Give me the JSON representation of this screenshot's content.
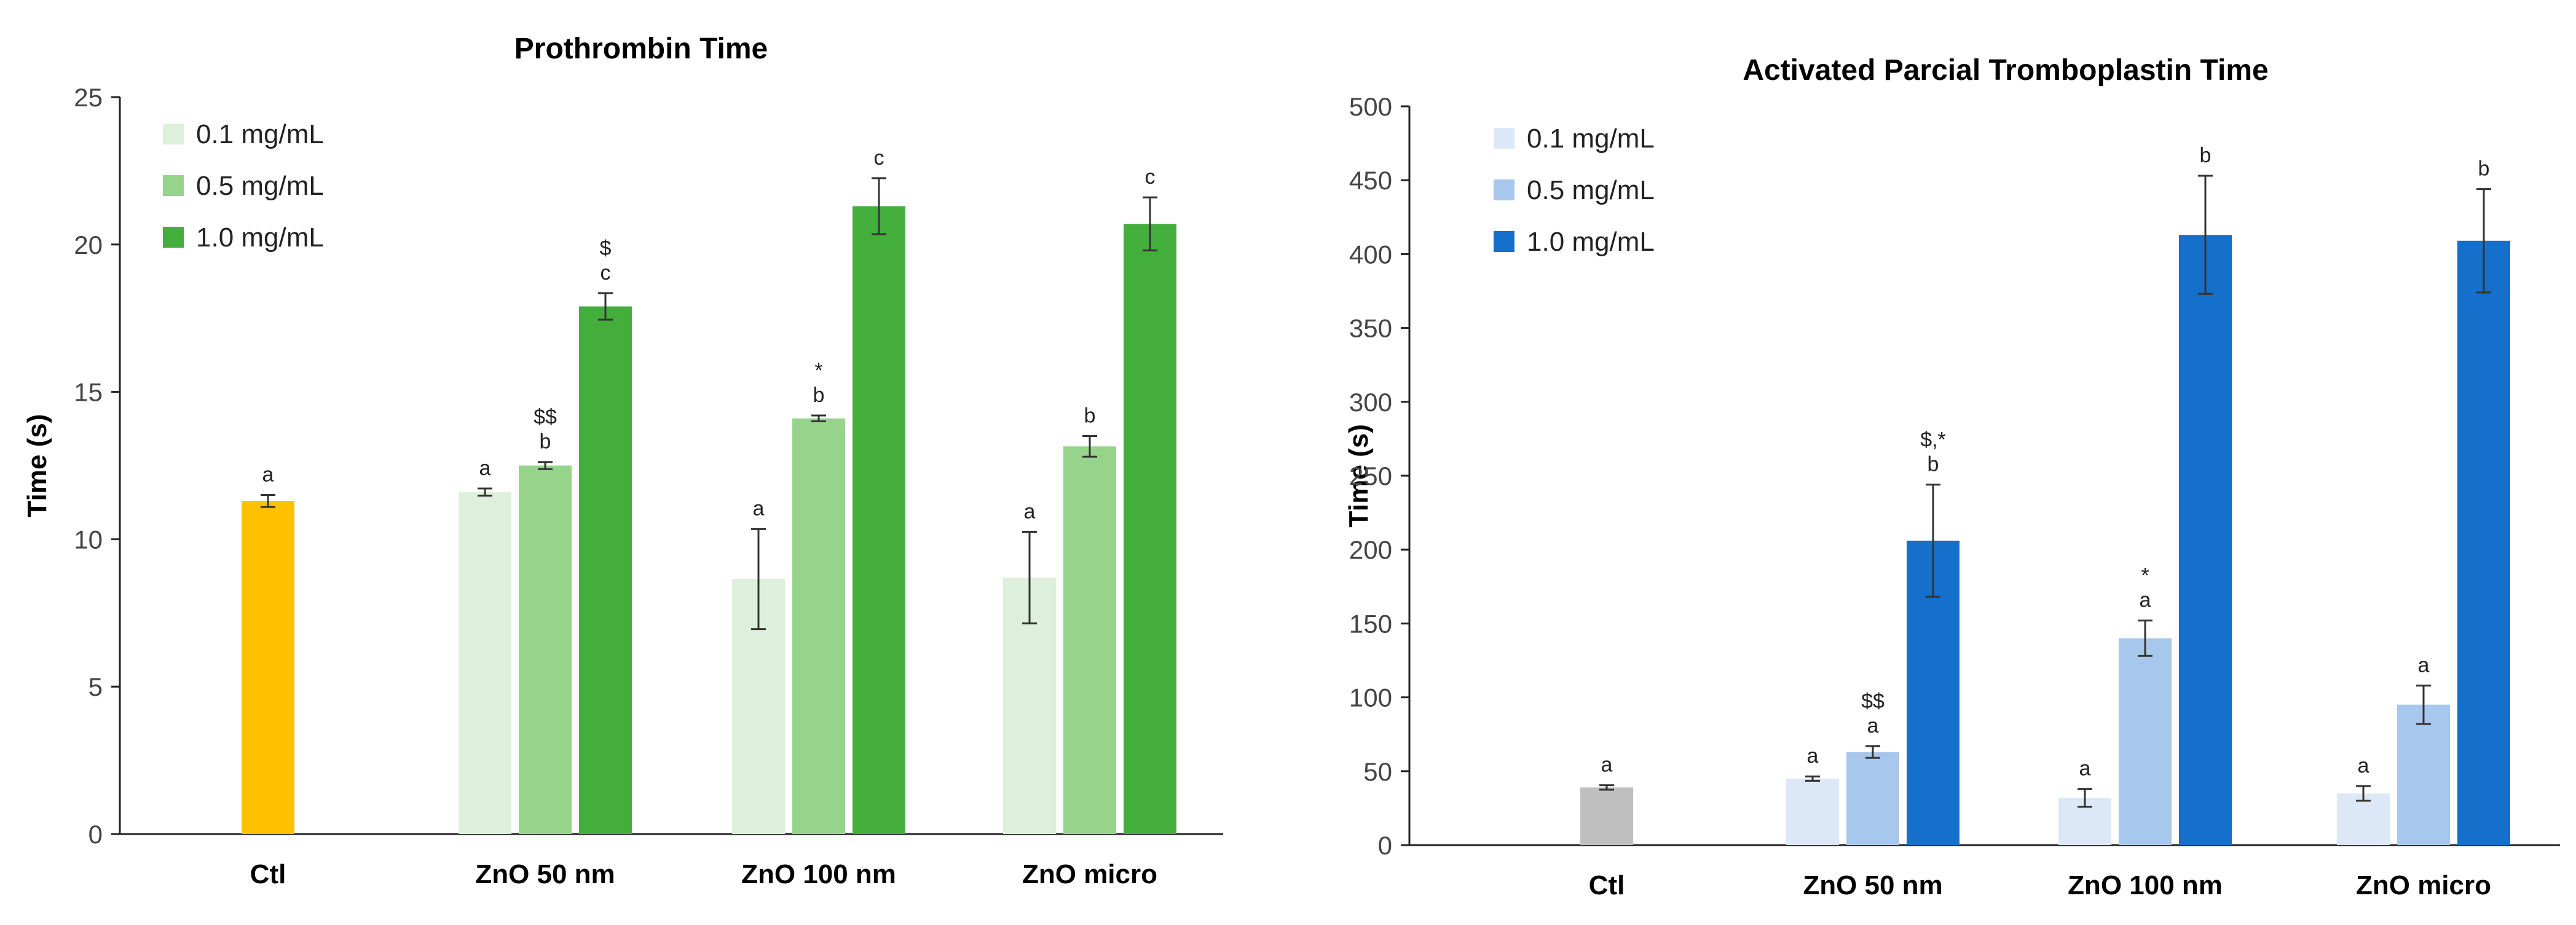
{
  "chart_data": [
    {
      "type": "bar",
      "title": "Prothrombin Time",
      "xlabel": "",
      "ylabel": "Time (s)",
      "ylim": [
        0,
        25
      ],
      "yticks": [
        0,
        5,
        10,
        15,
        20,
        25
      ],
      "grid": false,
      "legend_position": "top-left",
      "categories": [
        "Ctl",
        "ZnO 50 nm",
        "ZnO 100 nm",
        "ZnO micro"
      ],
      "control": {
        "value": 11.3,
        "error": 0.2,
        "annotation": "a",
        "color": "#FFC000"
      },
      "series": [
        {
          "name": "0.1 mg/mL",
          "color": "#DDF0DB",
          "values": [
            null,
            11.6,
            8.65,
            8.7
          ],
          "errors": [
            null,
            0.12,
            1.7,
            1.55
          ],
          "annotations": [
            null,
            "a",
            "a",
            "a"
          ]
        },
        {
          "name": "0.5 mg/mL",
          "color": "#96D48C",
          "values": [
            null,
            12.5,
            14.1,
            13.15
          ],
          "errors": [
            null,
            0.12,
            0.1,
            0.35
          ],
          "annotations": [
            null,
            "$$\nb",
            "*\nb",
            "b"
          ]
        },
        {
          "name": "1.0 mg/mL",
          "color": "#44AE3C",
          "values": [
            null,
            17.9,
            21.3,
            20.7
          ],
          "errors": [
            null,
            0.45,
            0.95,
            0.9
          ],
          "annotations": [
            null,
            "$\nc",
            "c",
            "c"
          ]
        }
      ]
    },
    {
      "type": "bar",
      "title": "Activated Parcial  Tromboplastin Time",
      "xlabel": "",
      "ylabel": "Time (s)",
      "ylim": [
        0,
        500
      ],
      "yticks": [
        0,
        50,
        100,
        150,
        200,
        250,
        300,
        350,
        400,
        450,
        500
      ],
      "grid": false,
      "legend_position": "top-left",
      "categories": [
        "Ctl",
        "ZnO 50 nm",
        "ZnO 100 nm",
        "ZnO micro"
      ],
      "control": {
        "value": 39,
        "error": 1.5,
        "annotation": "a",
        "color": "#BFBFBF"
      },
      "series": [
        {
          "name": "0.1 mg/mL",
          "color": "#DCE8F8",
          "values": [
            null,
            45,
            32,
            35
          ],
          "errors": [
            null,
            1.5,
            6,
            5
          ],
          "annotations": [
            null,
            "a",
            "a",
            "a"
          ]
        },
        {
          "name": "0.5 mg/mL",
          "color": "#A8C7EC",
          "values": [
            null,
            63,
            140,
            95
          ],
          "errors": [
            null,
            4,
            12,
            13
          ],
          "annotations": [
            null,
            "$$\na",
            "*\na",
            "a"
          ]
        },
        {
          "name": "1.0 mg/mL",
          "color": "#1570CB",
          "values": [
            null,
            206,
            413,
            409
          ],
          "errors": [
            null,
            38,
            40,
            35
          ],
          "annotations": [
            null,
            "$,*\nb",
            "b",
            "b"
          ]
        }
      ]
    }
  ]
}
